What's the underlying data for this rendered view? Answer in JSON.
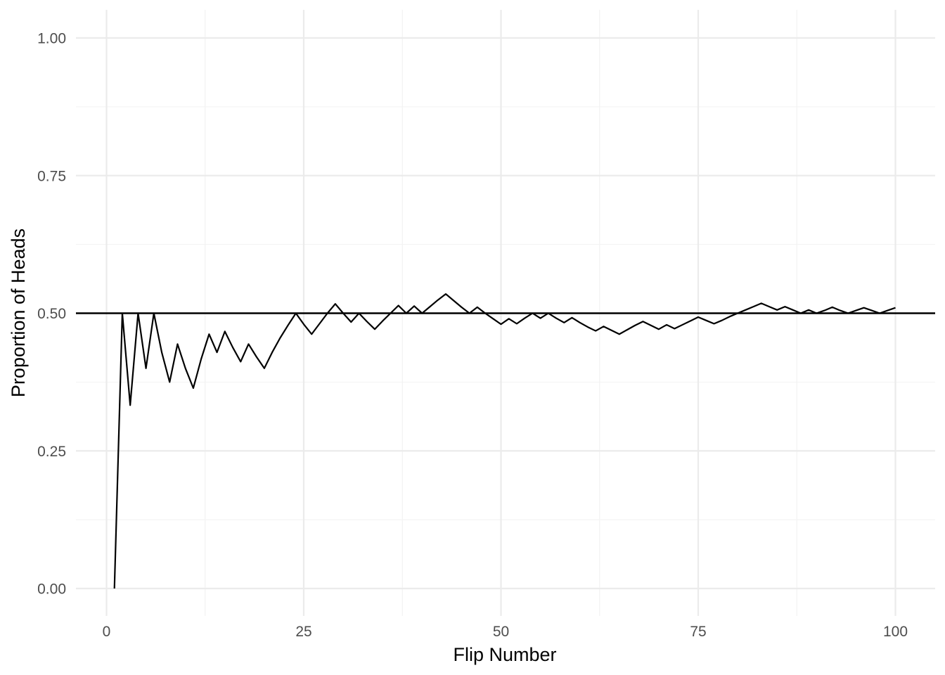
{
  "chart_data": {
    "type": "line",
    "title": "",
    "xlabel": "Flip Number",
    "ylabel": "Proportion of Heads",
    "xlim": [
      0,
      100
    ],
    "ylim": [
      0,
      1
    ],
    "x_ticks": [
      0,
      25,
      50,
      75,
      100
    ],
    "x_tick_labels": [
      "0",
      "25",
      "50",
      "75",
      "100"
    ],
    "y_ticks": [
      0,
      0.25,
      0.5,
      0.75,
      1
    ],
    "y_tick_labels": [
      "0.00",
      "0.25",
      "0.50",
      "0.75",
      "1.00"
    ],
    "grid": true,
    "reference_line": {
      "y": 0.5
    },
    "series": [
      {
        "x": [
          1,
          2,
          3,
          4,
          5,
          6,
          7,
          8,
          9,
          10,
          11,
          12,
          13,
          14,
          15,
          16,
          17,
          18,
          19,
          20,
          21,
          22,
          23,
          24,
          25,
          26,
          27,
          28,
          29,
          30,
          31,
          32,
          33,
          34,
          35,
          36,
          37,
          38,
          39,
          40,
          41,
          42,
          43,
          44,
          45,
          46,
          47,
          48,
          49,
          50,
          51,
          52,
          53,
          54,
          55,
          56,
          57,
          58,
          59,
          60,
          61,
          62,
          63,
          64,
          65,
          66,
          67,
          68,
          69,
          70,
          71,
          72,
          73,
          74,
          75,
          76,
          77,
          78,
          79,
          80,
          81,
          82,
          83,
          84,
          85,
          86,
          87,
          88,
          89,
          90,
          91,
          92,
          93,
          94,
          95,
          96,
          97,
          98,
          99,
          100
        ],
        "values": [
          0,
          0.5,
          0.333,
          0.5,
          0.4,
          0.5,
          0.429,
          0.375,
          0.444,
          0.4,
          0.364,
          0.417,
          0.462,
          0.429,
          0.467,
          0.438,
          0.412,
          0.444,
          0.421,
          0.4,
          0.429,
          0.455,
          0.478,
          0.5,
          0.48,
          0.462,
          0.481,
          0.5,
          0.517,
          0.5,
          0.484,
          0.5,
          0.485,
          0.471,
          0.486,
          0.5,
          0.514,
          0.5,
          0.513,
          0.5,
          0.512,
          0.524,
          0.535,
          0.523,
          0.511,
          0.5,
          0.511,
          0.5,
          0.49,
          0.48,
          0.49,
          0.481,
          0.491,
          0.5,
          0.491,
          0.5,
          0.491,
          0.483,
          0.492,
          0.483,
          0.475,
          0.468,
          0.476,
          0.469,
          0.462,
          0.47,
          0.478,
          0.485,
          0.478,
          0.471,
          0.479,
          0.472,
          0.479,
          0.486,
          0.493,
          0.487,
          0.481,
          0.487,
          0.494,
          0.5,
          0.506,
          0.512,
          0.518,
          0.512,
          0.506,
          0.512,
          0.506,
          0.5,
          0.506,
          0.5,
          0.505,
          0.511,
          0.505,
          0.5,
          0.505,
          0.51,
          0.505,
          0.5,
          0.505,
          0.51
        ]
      }
    ]
  }
}
